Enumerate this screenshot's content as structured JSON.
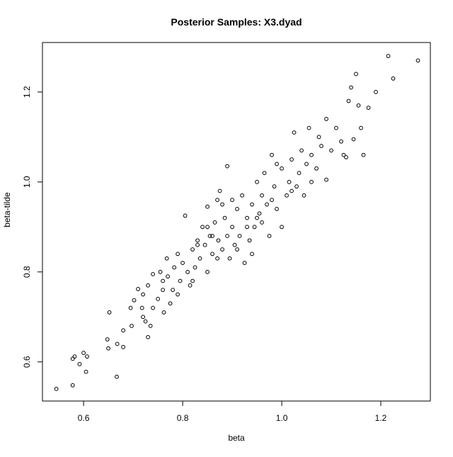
{
  "chart_data": {
    "type": "scatter",
    "title": "Posterior Samples: X3.dyad",
    "x_label": "beta",
    "y_label": "beta-tilde",
    "color": "#000000",
    "x": [
      0.545,
      0.578,
      0.578,
      0.582,
      0.592,
      0.6,
      0.605,
      0.607,
      0.648,
      0.65,
      0.652,
      0.667,
      0.668,
      0.68,
      0.68,
      0.695,
      0.697,
      0.702,
      0.71,
      0.718,
      0.72,
      0.725,
      0.73,
      0.73,
      0.735,
      0.74,
      0.74,
      0.75,
      0.755,
      0.76,
      0.762,
      0.768,
      0.77,
      0.775,
      0.78,
      0.783,
      0.79,
      0.795,
      0.8,
      0.805,
      0.81,
      0.815,
      0.82,
      0.825,
      0.83,
      0.835,
      0.84,
      0.845,
      0.85,
      0.85,
      0.855,
      0.86,
      0.865,
      0.87,
      0.872,
      0.875,
      0.88,
      0.885,
      0.89,
      0.89,
      0.895,
      0.9,
      0.905,
      0.91,
      0.915,
      0.92,
      0.925,
      0.93,
      0.935,
      0.94,
      0.945,
      0.95,
      0.955,
      0.96,
      0.965,
      0.97,
      0.975,
      0.98,
      0.985,
      0.99,
      1.0,
      1.0,
      1.01,
      1.015,
      1.02,
      1.025,
      1.03,
      1.035,
      1.04,
      1.045,
      1.05,
      1.055,
      1.06,
      1.07,
      1.075,
      1.08,
      1.09,
      1.09,
      1.1,
      1.11,
      1.12,
      1.125,
      1.13,
      1.135,
      1.14,
      1.145,
      1.15,
      1.155,
      1.16,
      1.165,
      1.175,
      1.19,
      1.215,
      1.225,
      1.275,
      0.93,
      0.96,
      0.86,
      0.82,
      0.79,
      0.87,
      0.91,
      0.95,
      1.06,
      0.98,
      0.88,
      0.83,
      0.76,
      0.72,
      0.94,
      0.99,
      1.02,
      0.85,
      0.9
    ],
    "values": [
      0.54,
      0.548,
      0.607,
      0.612,
      0.595,
      0.62,
      0.578,
      0.612,
      0.65,
      0.63,
      0.71,
      0.567,
      0.64,
      0.633,
      0.67,
      0.72,
      0.68,
      0.737,
      0.762,
      0.72,
      0.75,
      0.69,
      0.655,
      0.77,
      0.68,
      0.72,
      0.795,
      0.74,
      0.8,
      0.76,
      0.71,
      0.83,
      0.79,
      0.73,
      0.76,
      0.81,
      0.84,
      0.78,
      0.82,
      0.925,
      0.8,
      0.77,
      0.85,
      0.81,
      0.87,
      0.83,
      0.9,
      0.86,
      0.8,
      0.945,
      0.88,
      0.84,
      0.91,
      0.96,
      0.87,
      0.98,
      0.85,
      0.92,
      1.035,
      0.88,
      0.83,
      0.9,
      0.86,
      0.94,
      0.88,
      0.97,
      0.82,
      0.92,
      0.87,
      0.95,
      0.9,
      1.0,
      0.93,
      0.97,
      1.02,
      0.95,
      0.88,
      1.06,
      0.99,
      0.94,
      0.9,
      1.03,
      0.97,
      1.0,
      1.05,
      1.11,
      0.99,
      1.02,
      1.07,
      0.97,
      1.04,
      1.12,
      1.06,
      1.03,
      1.1,
      1.08,
      1.14,
      1.005,
      1.07,
      1.12,
      1.09,
      1.06,
      1.055,
      1.18,
      1.21,
      1.095,
      1.24,
      1.17,
      1.12,
      1.06,
      1.165,
      1.2,
      1.28,
      1.23,
      1.27,
      0.9,
      0.91,
      0.88,
      0.78,
      0.75,
      0.83,
      0.85,
      0.92,
      1.0,
      0.96,
      0.95,
      0.86,
      0.78,
      0.7,
      0.84,
      1.04,
      0.98,
      0.9,
      0.96
    ],
    "xlim": [
      0.517,
      1.3
    ],
    "ylim": [
      0.513,
      1.31
    ],
    "xticks": [
      0.6,
      0.8,
      {
        "value": 1,
        "label": "1.0"
      },
      1.2
    ],
    "yticks": [
      0.6,
      0.8,
      {
        "value": 1,
        "label": "1.0"
      },
      1.2
    ]
  }
}
